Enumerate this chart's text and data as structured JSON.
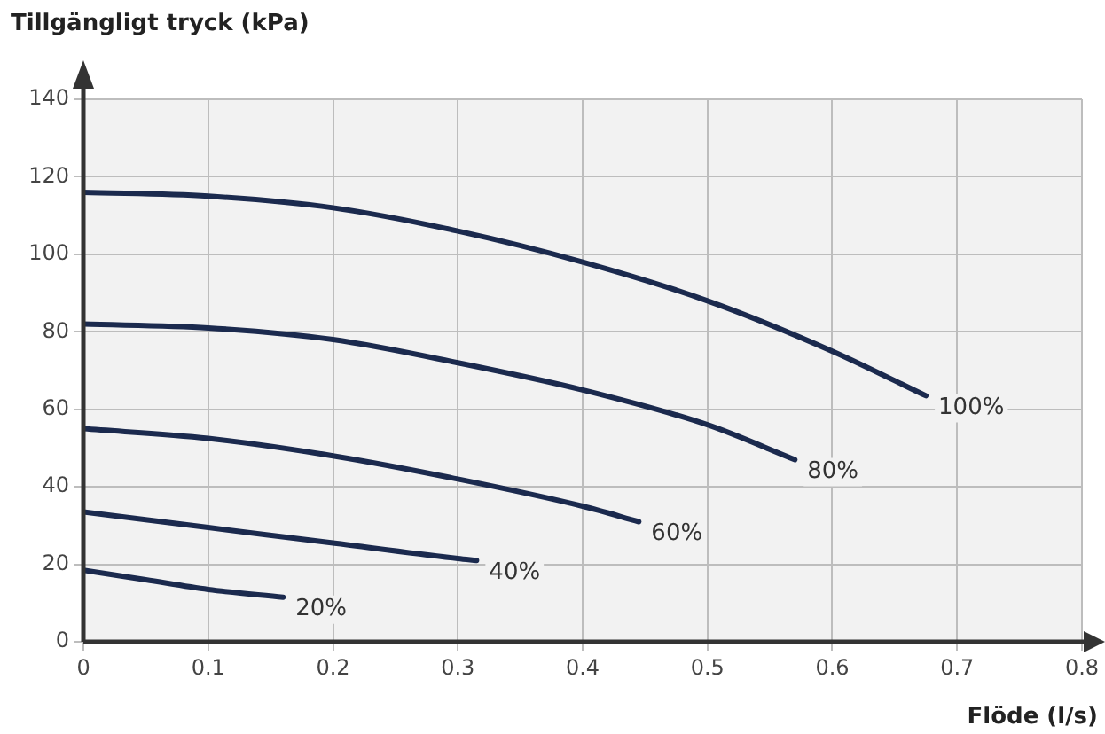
{
  "chart_data": {
    "type": "line",
    "xlabel": "Flöde (l/s)",
    "ylabel": "Tillgängligt tryck (kPa)",
    "xlim": [
      0,
      0.8
    ],
    "xticks": [
      0,
      0.1,
      0.2,
      0.3,
      0.4,
      0.5,
      0.6,
      0.7,
      0.8
    ],
    "ylim": [
      0,
      140
    ],
    "yticks": [
      0,
      20,
      40,
      60,
      80,
      100,
      120,
      140
    ],
    "grid": true,
    "legend": false,
    "marker": "none",
    "line_style": "solid",
    "series": [
      {
        "name": "100%",
        "color": "#1b2a4e",
        "x": [
          0,
          0.1,
          0.2,
          0.3,
          0.4,
          0.5,
          0.6,
          0.675
        ],
        "values": [
          116,
          115,
          112,
          106,
          98,
          88,
          75,
          63.5
        ]
      },
      {
        "name": "80%",
        "color": "#1b2a4e",
        "x": [
          0,
          0.1,
          0.2,
          0.3,
          0.4,
          0.5,
          0.57
        ],
        "values": [
          82,
          81,
          78,
          72,
          65,
          56,
          47
        ]
      },
      {
        "name": "60%",
        "color": "#1b2a4e",
        "x": [
          0,
          0.1,
          0.2,
          0.3,
          0.4,
          0.445
        ],
        "values": [
          55,
          52.5,
          48,
          42,
          35,
          31
        ]
      },
      {
        "name": "40%",
        "color": "#1b2a4e",
        "x": [
          0,
          0.1,
          0.2,
          0.3,
          0.315
        ],
        "values": [
          33.5,
          29.5,
          25.5,
          21.5,
          21
        ]
      },
      {
        "name": "20%",
        "color": "#1b2a4e",
        "x": [
          0,
          0.05,
          0.1,
          0.16
        ],
        "values": [
          18.5,
          16,
          13.5,
          11.5
        ]
      }
    ]
  }
}
